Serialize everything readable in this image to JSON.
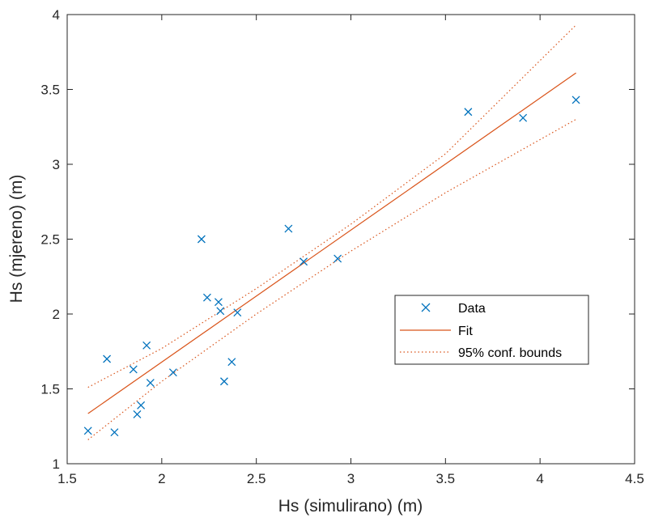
{
  "chart_data": {
    "type": "scatter",
    "xlabel": "Hs (simulirano) (m)",
    "ylabel": "Hs (mjereno) (m)",
    "xlim": [
      1.5,
      4.5
    ],
    "ylim": [
      1,
      4
    ],
    "xticks": [
      1.5,
      2,
      2.5,
      3,
      3.5,
      4,
      4.5
    ],
    "yticks": [
      1,
      1.5,
      2,
      2.5,
      3,
      3.5,
      4
    ],
    "xtick_labels": [
      "1.5",
      "2",
      "2.5",
      "3",
      "3.5",
      "4",
      "4.5"
    ],
    "ytick_labels": [
      "1",
      "1.5",
      "2",
      "2.5",
      "3",
      "3.5",
      "4"
    ],
    "grid": false,
    "legend_position": "right",
    "series": [
      {
        "name": "Data",
        "marker": "x",
        "color": "#0072BD",
        "x": [
          1.61,
          1.71,
          1.75,
          1.85,
          1.87,
          1.89,
          1.92,
          1.94,
          2.06,
          2.21,
          2.24,
          2.3,
          2.31,
          2.33,
          2.37,
          2.4,
          2.67,
          2.75,
          2.93,
          3.62,
          3.91,
          4.19
        ],
        "y": [
          1.22,
          1.7,
          1.21,
          1.63,
          1.33,
          1.39,
          1.79,
          1.54,
          1.61,
          2.5,
          2.11,
          2.08,
          2.02,
          1.55,
          1.68,
          2.01,
          2.57,
          2.35,
          2.37,
          3.35,
          3.31,
          3.43
        ]
      },
      {
        "name": "Fit",
        "style": "solid",
        "color": "#D95319",
        "x": [
          1.61,
          4.19
        ],
        "y": [
          1.335,
          3.61
        ]
      },
      {
        "name": "95% conf. bounds",
        "style": "dotted",
        "color": "#D95319",
        "upper": {
          "x": [
            1.61,
            2.0,
            2.5,
            3.0,
            3.5,
            4.19
          ],
          "y": [
            1.51,
            1.77,
            2.17,
            2.6,
            3.07,
            3.93
          ]
        },
        "lower": {
          "x": [
            1.61,
            2.0,
            2.5,
            3.0,
            3.5,
            4.19
          ],
          "y": [
            1.16,
            1.55,
            2.0,
            2.42,
            2.81,
            3.3
          ]
        }
      }
    ]
  }
}
